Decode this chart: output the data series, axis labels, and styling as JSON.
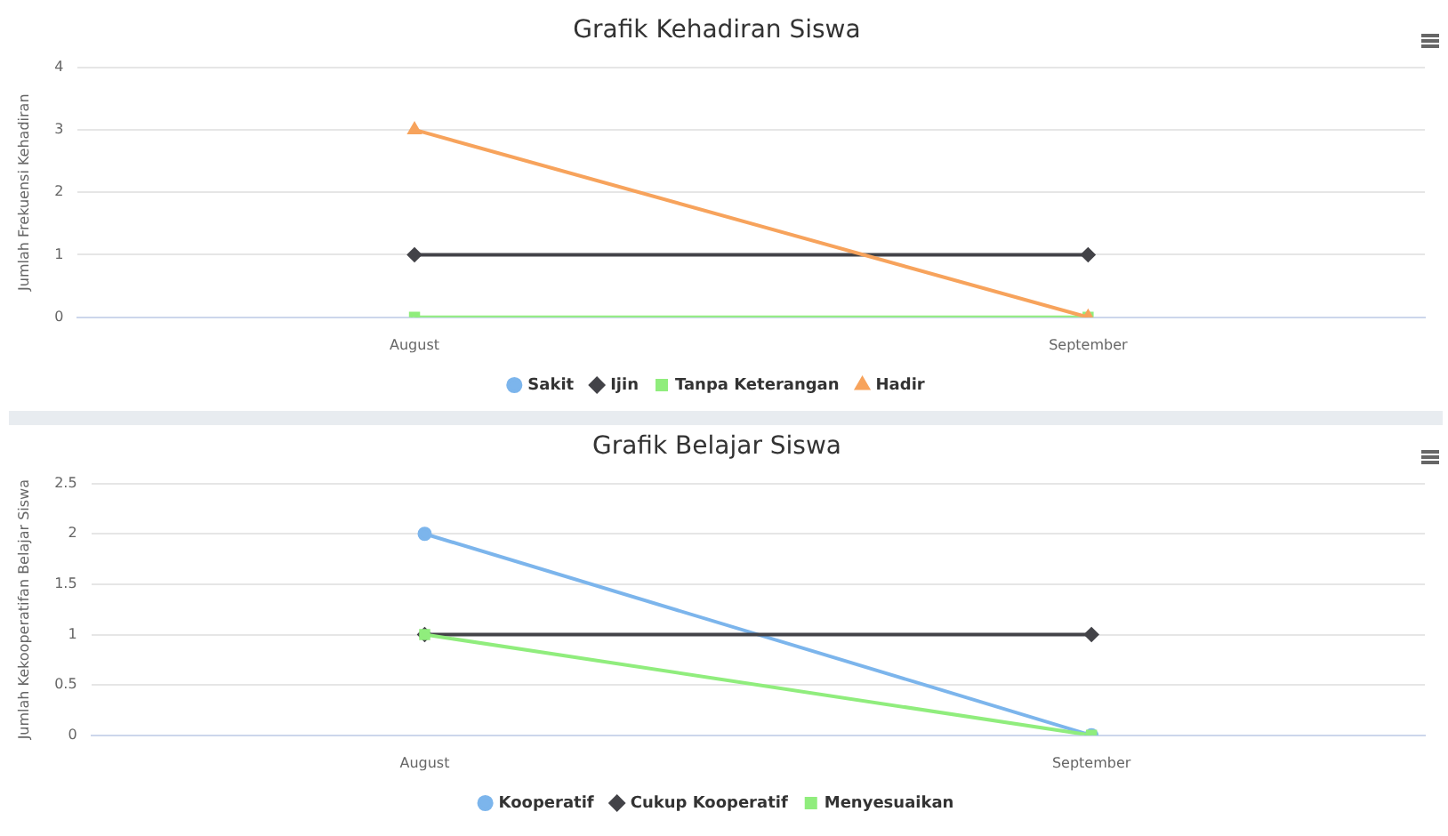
{
  "chart_data": [
    {
      "type": "line",
      "title": "Grafik Kehadiran Siswa",
      "ylabel": "Jumlah Frekuensi Kehadiran",
      "categories": [
        "August",
        "September"
      ],
      "series": [
        {
          "name": "Sakit",
          "color": "#7cb5ec",
          "marker": "circle",
          "values": [
            null,
            null
          ]
        },
        {
          "name": "Ijin",
          "color": "#434348",
          "marker": "diamond",
          "values": [
            1,
            1
          ]
        },
        {
          "name": "Tanpa Keterangan",
          "color": "#90ed7d",
          "marker": "square",
          "values": [
            0,
            0
          ]
        },
        {
          "name": "Hadir",
          "color": "#f7a35c",
          "marker": "triangle",
          "values": [
            3,
            0
          ]
        }
      ],
      "ylim": [
        0,
        4
      ],
      "yticks": [
        0,
        1,
        2,
        3,
        4
      ],
      "grid": "y",
      "legend": "bottom"
    },
    {
      "type": "line",
      "title": "Grafik Belajar Siswa",
      "ylabel": "Jumlah Kekooperatifan Belajar Siswa",
      "categories": [
        "August",
        "September"
      ],
      "series": [
        {
          "name": "Kooperatif",
          "color": "#7cb5ec",
          "marker": "circle",
          "values": [
            2,
            0
          ]
        },
        {
          "name": "Cukup Kooperatif",
          "color": "#434348",
          "marker": "diamond",
          "values": [
            1,
            1
          ]
        },
        {
          "name": "Menyesuaikan",
          "color": "#90ed7d",
          "marker": "square",
          "values": [
            1,
            0
          ]
        }
      ],
      "ylim": [
        0,
        2.5
      ],
      "yticks": [
        0,
        0.5,
        1,
        1.5,
        2,
        2.5
      ],
      "grid": "y",
      "legend": "bottom"
    }
  ]
}
